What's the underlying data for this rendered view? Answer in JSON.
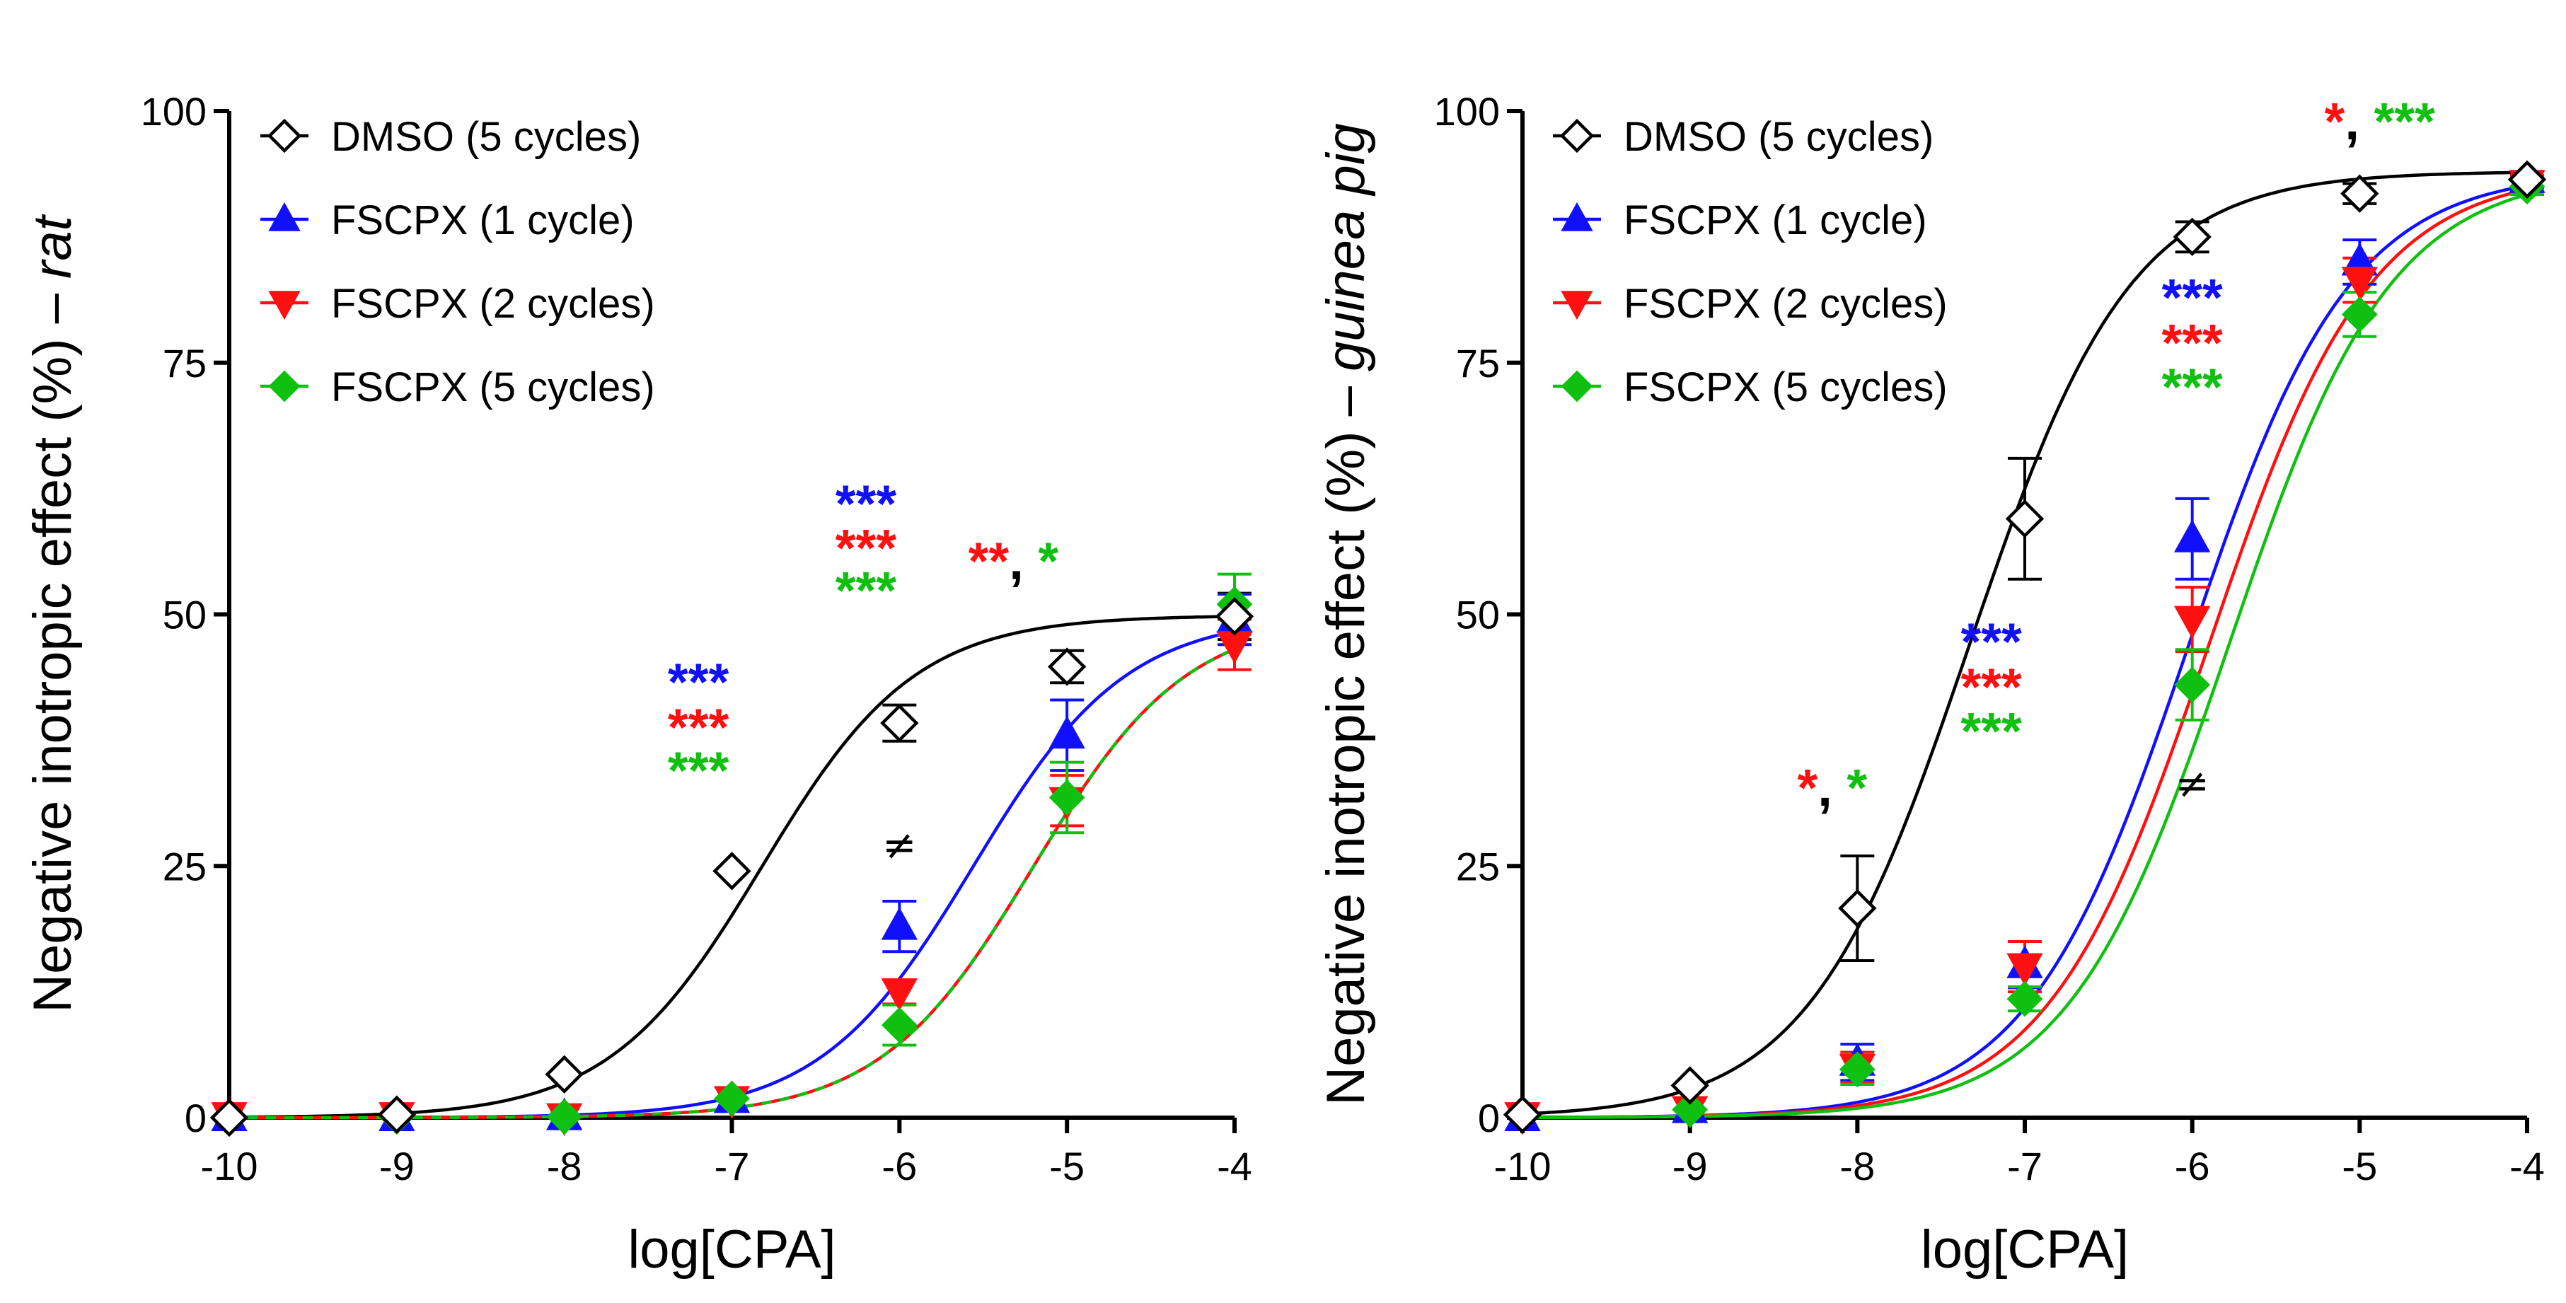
{
  "chart_data": [
    {
      "type": "line",
      "panel": "left",
      "ylabel": "Negative inotropic effect (%) – ",
      "ylabel_species": "rat",
      "xlabel": "log[CPA]",
      "xlim": [
        -10,
        -4
      ],
      "ylim": [
        0,
        100
      ],
      "xticks": [
        -10,
        -9,
        -8,
        -7,
        -6,
        -5,
        -4
      ],
      "yticks": [
        0,
        25,
        50,
        75,
        100
      ],
      "legend_placement": "top-left",
      "series": [
        {
          "name": "DMSO (5 cycles)",
          "marker": "diamond-open",
          "color": "#000000",
          "fit": {
            "bottom": 0,
            "top": 49.9,
            "logec50": -6.82,
            "hill": 0.95
          },
          "points": [
            [
              -10,
              0,
              0
            ],
            [
              -9,
              0.3,
              0
            ],
            [
              -8,
              4.3,
              0
            ],
            [
              -7,
              24.5,
              0
            ],
            [
              -6,
              39.2,
              1.8
            ],
            [
              -5,
              44.8,
              1.6
            ],
            [
              -4,
              49.8,
              2.3
            ]
          ]
        },
        {
          "name": "FSCPX (1 cycle)",
          "marker": "triangle-up",
          "color": "#1010ff",
          "fit": {
            "bottom": 0,
            "top": 49.9,
            "logec50": -5.56,
            "hill": 0.95
          },
          "points": [
            [
              -10,
              0,
              0
            ],
            [
              -9,
              0,
              0
            ],
            [
              -8,
              0.1,
              0
            ],
            [
              -7,
              1.8,
              0
            ],
            [
              -6,
              19.0,
              2.5
            ],
            [
              -5,
              38.0,
              3.5
            ],
            [
              -4,
              49.5,
              2.5
            ]
          ]
        },
        {
          "name": "FSCPX (2 cycles)",
          "marker": "triangle-down",
          "color": "#ff1010",
          "fit": {
            "bottom": 0,
            "top": 49.9,
            "logec50": -5.2,
            "hill": 0.95
          },
          "points": [
            [
              -10,
              0.2,
              0
            ],
            [
              -9,
              0.2,
              0
            ],
            [
              -8,
              0.1,
              0
            ],
            [
              -7,
              1.8,
              0
            ],
            [
              -6,
              12.5,
              1.2
            ],
            [
              -5,
              31.5,
              2.5
            ],
            [
              -4,
              47.0,
              2.5
            ]
          ]
        },
        {
          "name": "FSCPX (5 cycles)",
          "marker": "diamond",
          "color": "#10c010",
          "fit": {
            "bottom": 0,
            "top": 49.9,
            "logec50": -5.2,
            "hill": 0.95
          },
          "points": [
            [
              -10,
              0,
              0
            ],
            [
              -9,
              0.1,
              0
            ],
            [
              -8,
              0.1,
              0
            ],
            [
              -7,
              1.9,
              0
            ],
            [
              -6,
              9.2,
              2.0
            ],
            [
              -5,
              31.8,
              3.5
            ],
            [
              -4,
              51.0,
              3.0
            ]
          ]
        }
      ],
      "annotations": [
        {
          "x": -7.2,
          "y": 41.5,
          "parts": [
            {
              "text": "***",
              "color": "#1010ff"
            }
          ]
        },
        {
          "x": -7.2,
          "y": 37.0,
          "parts": [
            {
              "text": "***",
              "color": "#ff1010"
            }
          ]
        },
        {
          "x": -7.2,
          "y": 32.7,
          "parts": [
            {
              "text": "***",
              "color": "#10c010"
            }
          ]
        },
        {
          "x": -6.2,
          "y": 59.2,
          "parts": [
            {
              "text": "***",
              "color": "#1010ff"
            }
          ]
        },
        {
          "x": -6.2,
          "y": 54.8,
          "parts": [
            {
              "text": "***",
              "color": "#ff1010"
            }
          ]
        },
        {
          "x": -6.2,
          "y": 50.6,
          "parts": [
            {
              "text": "***",
              "color": "#10c010"
            }
          ]
        },
        {
          "x": -5.32,
          "y": 53.5,
          "parts": [
            {
              "text": "**",
              "color": "#ff1010"
            },
            {
              "text": ", ",
              "color": "#000000"
            },
            {
              "text": "*",
              "color": "#10c010"
            }
          ]
        },
        {
          "x": -6.0,
          "y": 25.7,
          "neq": true,
          "parts": [
            {
              "text": "≠",
              "color": "#000000"
            }
          ]
        }
      ]
    },
    {
      "type": "line",
      "panel": "right",
      "ylabel": "Negative inotropic effect (%) – ",
      "ylabel_species": "guinea pig",
      "xlabel": "log[CPA]",
      "xlim": [
        -10,
        -4
      ],
      "ylim": [
        0,
        100
      ],
      "xticks": [
        -10,
        -9,
        -8,
        -7,
        -6,
        -5,
        -4
      ],
      "yticks": [
        0,
        25,
        50,
        75,
        100
      ],
      "legend_placement": "top-left",
      "series": [
        {
          "name": "DMSO (5 cycles)",
          "marker": "diamond-open",
          "color": "#000000",
          "fit": {
            "bottom": 0,
            "top": 94,
            "logec50": -7.33,
            "hill": 0.9
          },
          "points": [
            [
              -10,
              0.3,
              0
            ],
            [
              -9,
              3.2,
              0
            ],
            [
              -8,
              20.8,
              5.2
            ],
            [
              -7,
              59.5,
              6.0
            ],
            [
              -6,
              87.5,
              1.5
            ],
            [
              -5,
              91.8,
              1.0
            ],
            [
              -4,
              93.2,
              0.8
            ]
          ]
        },
        {
          "name": "FSCPX (1 cycle)",
          "marker": "triangle-up",
          "color": "#1010ff",
          "fit": {
            "bottom": 0,
            "top": 94,
            "logec50": -6.02,
            "hill": 0.9
          },
          "points": [
            [
              -10,
              0,
              0
            ],
            [
              -9,
              0.8,
              0
            ],
            [
              -8,
              5.5,
              1.8
            ],
            [
              -7,
              15.2,
              2.3
            ],
            [
              -6,
              57.5,
              4.0
            ],
            [
              -5,
              85.0,
              2.2
            ],
            [
              -4,
              93.2,
              0.8
            ]
          ]
        },
        {
          "name": "FSCPX (2 cycles)",
          "marker": "triangle-down",
          "color": "#ff1010",
          "fit": {
            "bottom": 0,
            "top": 94,
            "logec50": -5.9,
            "hill": 0.9
          },
          "points": [
            [
              -10,
              0.2,
              0
            ],
            [
              -9,
              0.8,
              0
            ],
            [
              -8,
              5.0,
              1.5
            ],
            [
              -7,
              15.0,
              2.5
            ],
            [
              -6,
              49.5,
              3.2
            ],
            [
              -5,
              83.2,
              2.2
            ],
            [
              -4,
              92.8,
              0.8
            ]
          ]
        },
        {
          "name": "FSCPX (5 cycles)",
          "marker": "diamond",
          "color": "#10c010",
          "fit": {
            "bottom": 0,
            "top": 94,
            "logec50": -5.78,
            "hill": 0.9
          },
          "points": [
            [
              -10,
              0.2,
              0
            ],
            [
              -9,
              0.8,
              0
            ],
            [
              -8,
              4.8,
              1.5
            ],
            [
              -7,
              11.8,
              1.2
            ],
            [
              -6,
              43.0,
              3.5
            ],
            [
              -5,
              79.8,
              2.2
            ],
            [
              -4,
              92.5,
              0.8
            ]
          ]
        }
      ],
      "annotations": [
        {
          "x": -7.2,
          "y": 45.5,
          "parts": [
            {
              "text": "***",
              "color": "#1010ff"
            }
          ]
        },
        {
          "x": -7.2,
          "y": 41.0,
          "parts": [
            {
              "text": "***",
              "color": "#ff1010"
            }
          ]
        },
        {
          "x": -7.2,
          "y": 36.6,
          "parts": [
            {
              "text": "***",
              "color": "#10c010"
            }
          ]
        },
        {
          "x": -6.0,
          "y": 79.7,
          "parts": [
            {
              "text": "***",
              "color": "#1010ff"
            }
          ]
        },
        {
          "x": -6.0,
          "y": 75.2,
          "parts": [
            {
              "text": "***",
              "color": "#ff1010"
            }
          ]
        },
        {
          "x": -6.0,
          "y": 70.8,
          "parts": [
            {
              "text": "***",
              "color": "#10c010"
            }
          ]
        },
        {
          "x": -8.15,
          "y": 31.0,
          "parts": [
            {
              "text": "*",
              "color": "#ff1010"
            },
            {
              "text": ", ",
              "color": "#000000"
            },
            {
              "text": "*",
              "color": "#10c010"
            }
          ]
        },
        {
          "x": -4.88,
          "y": 97.2,
          "parts": [
            {
              "text": "*",
              "color": "#ff1010"
            },
            {
              "text": ", ",
              "color": "#000000"
            },
            {
              "text": "***",
              "color": "#10c010"
            }
          ]
        },
        {
          "x": -6.0,
          "y": 31.8,
          "neq": true,
          "parts": [
            {
              "text": "≠",
              "color": "#000000"
            }
          ]
        }
      ]
    }
  ]
}
